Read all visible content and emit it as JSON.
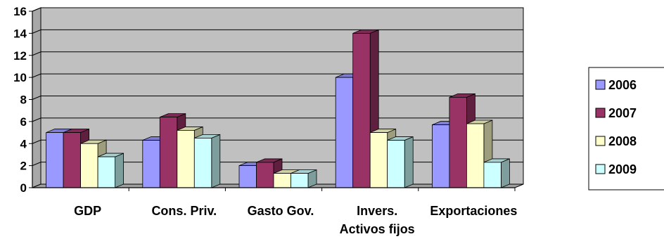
{
  "chart_data": {
    "type": "bar",
    "categories": [
      "GDP",
      "Cons. Priv.",
      "Gasto Gov.",
      "Invers.\nActivos fijos",
      "Exportaciones"
    ],
    "category_lines": [
      [
        "GDP"
      ],
      [
        "Cons. Priv."
      ],
      [
        "Gasto Gov."
      ],
      [
        "Invers.",
        "Activos fijos"
      ],
      [
        "Exportaciones"
      ]
    ],
    "series": [
      {
        "name": "2006",
        "values": [
          5.0,
          4.3,
          2.0,
          10.0,
          5.7
        ],
        "color": "#9999FF"
      },
      {
        "name": "2007",
        "values": [
          5.0,
          6.4,
          2.3,
          14.0,
          8.2
        ],
        "color": "#993366"
      },
      {
        "name": "2008",
        "values": [
          4.0,
          5.2,
          1.3,
          5.0,
          5.8
        ],
        "color": "#FFFFCC"
      },
      {
        "name": "2009",
        "values": [
          2.8,
          4.5,
          1.3,
          4.3,
          2.3
        ],
        "color": "#CCFFFF"
      }
    ],
    "ylim": [
      0,
      16
    ],
    "yticks": [
      0,
      2,
      4,
      6,
      8,
      10,
      12,
      14,
      16
    ],
    "grid": true,
    "legend_position": "right",
    "plot_background": "#C0C0C0",
    "title": "",
    "xlabel": "",
    "ylabel": ""
  }
}
